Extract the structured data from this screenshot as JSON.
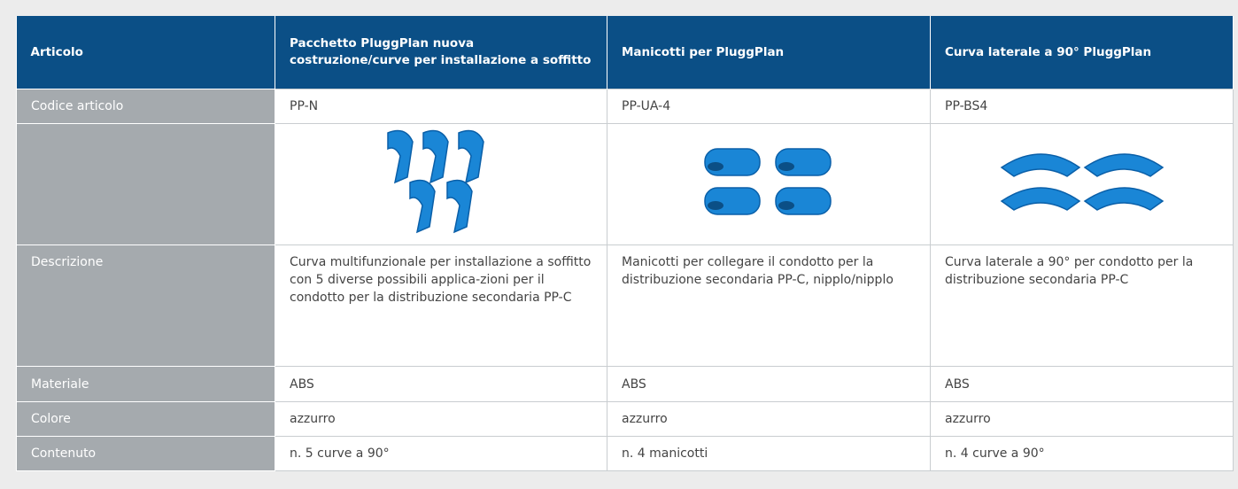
{
  "table": {
    "header": [
      "Articolo",
      "Pacchetto PluggPlan nuova costruzione/curve per installazione a soffitto",
      "Manicotti per PluggPlan",
      "Curva laterale a 90° PluggPlan"
    ],
    "rows": [
      {
        "label": "Codice articolo",
        "cells": [
          "PP-N",
          "PP-UA-4",
          "PP-BS4"
        ]
      },
      {
        "label": "Descrizione",
        "cells": [
          "Curva multifunzionale per installazione a soffitto con 5 diverse possibili applica-zioni per il condotto per la distribuzione secondaria PP-C",
          "Manicotti per collegare il condotto per la distribuzione secondaria PP-C, nipplo/nipplo",
          "Curva laterale a 90° per condotto per la distribuzione secondaria PP-C"
        ]
      },
      {
        "label": "Materiale",
        "cells": [
          "ABS",
          "ABS",
          "ABS"
        ]
      },
      {
        "label": "Colore",
        "cells": [
          "azzurro",
          "azzurro",
          "azzurro"
        ]
      },
      {
        "label": "Contenuto",
        "cells": [
          "n. 5 curve a 90°",
          "n. 4 manicotti",
          "n. 4 curve a 90°"
        ]
      }
    ]
  }
}
